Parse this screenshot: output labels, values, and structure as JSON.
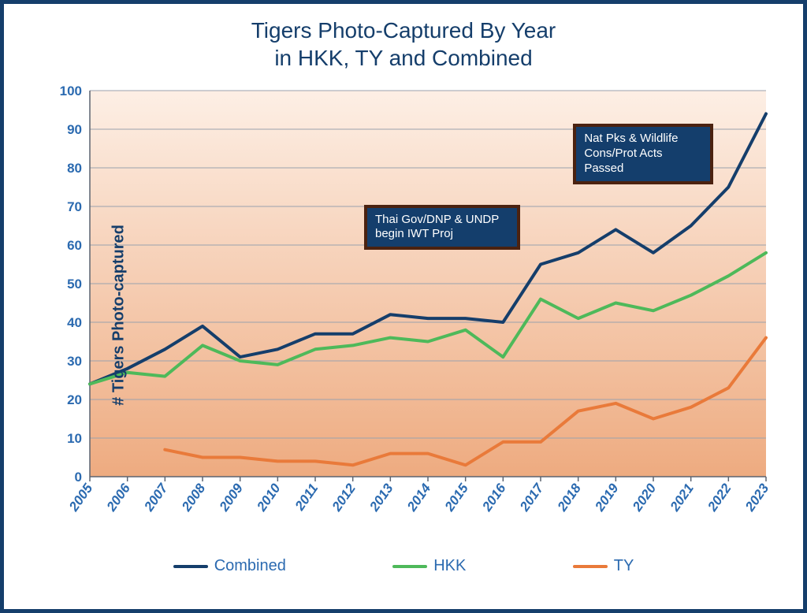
{
  "title_line1": "Tigers Photo-Captured By Year",
  "title_line2": "in HKK, TY and Combined",
  "y_axis_label": "# Tigers Photo-captured",
  "chart": {
    "type": "line",
    "years": [
      2005,
      2006,
      2007,
      2008,
      2009,
      2010,
      2011,
      2012,
      2013,
      2014,
      2015,
      2016,
      2017,
      2018,
      2019,
      2020,
      2021,
      2022,
      2023
    ],
    "ylim": [
      0,
      100
    ],
    "ytick_step": 10,
    "series": [
      {
        "name": "Combined",
        "color": "#153e6b",
        "width": 4,
        "values": [
          24,
          28,
          33,
          39,
          31,
          33,
          37,
          37,
          42,
          41,
          41,
          40,
          55,
          58,
          64,
          58,
          65,
          75,
          94
        ]
      },
      {
        "name": "HKK",
        "color": "#4eb95a",
        "width": 4,
        "values": [
          24,
          27,
          26,
          34,
          30,
          29,
          33,
          34,
          36,
          35,
          38,
          31,
          46,
          41,
          45,
          43,
          47,
          52,
          58
        ]
      },
      {
        "name": "TY",
        "color": "#e97a3a",
        "width": 4,
        "values": [
          null,
          null,
          7,
          5,
          5,
          4,
          4,
          3,
          6,
          6,
          3,
          9,
          9,
          17,
          19,
          15,
          18,
          23,
          36
        ]
      }
    ],
    "background_gradient": {
      "top": "#fdefe5",
      "bottom": "#eeab80"
    },
    "grid_color": "#9aa2ad",
    "axis_color": "#5c6470",
    "tick_label_color": "#2b6ab0",
    "tick_fontsize": 17,
    "title_color": "#153e6b",
    "title_fontsize": 28
  },
  "annotations": [
    {
      "id": "iwt",
      "text": "Thai Gov/DNP & UNDP begin IWT Proj",
      "target_year": 2017,
      "target_value": 55
    },
    {
      "id": "acts",
      "text": "Nat Pks & Wildlife Cons/Prot Acts Passed",
      "target_year": 2019,
      "target_value": 64
    }
  ],
  "annotation_style": {
    "bg": "#143e6c",
    "border": "#4b2210",
    "text_color": "#ffffff",
    "fontsize": 15
  },
  "legend_text_color": "#2b6ab0",
  "frame_border_color": "#153e6b"
}
